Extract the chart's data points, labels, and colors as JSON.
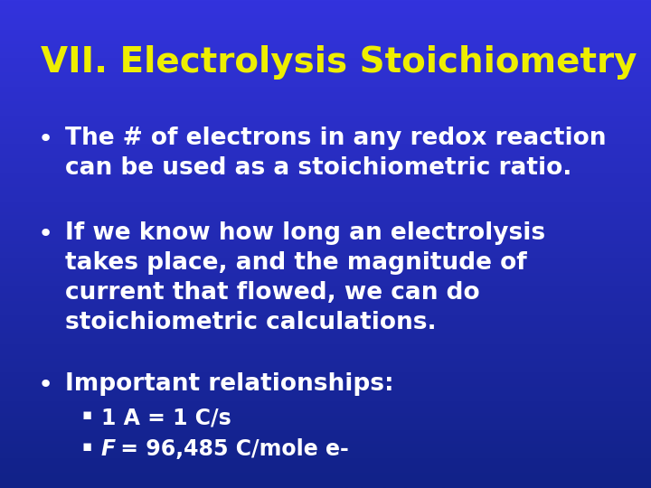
{
  "title": "VII. Electrolysis Stoichiometry",
  "title_color": "#EEEE00",
  "title_fontsize": 28,
  "bg_color_top": "#3333DD",
  "bg_color_bottom": "#112288",
  "bullet_color": "#FFFFFF",
  "bullet_fontsize": 19,
  "sub_bullet_color": "#FFFFFF",
  "sub_bullet_fontsize": 17,
  "bullets": [
    "The # of electrons in any redox reaction\ncan be used as a stoichiometric ratio.",
    "If we know how long an electrolysis\ntakes place, and the magnitude of\ncurrent that flowed, we can do\nstoichiometric calculations.",
    "Important relationships:"
  ],
  "sub_bullets": [
    "1 A = 1 C/s",
    " = 96,485 C/mole e-"
  ]
}
